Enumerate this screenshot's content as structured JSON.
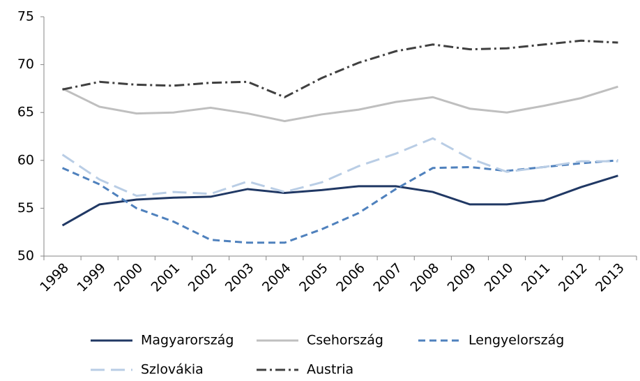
{
  "chart_data": {
    "type": "line",
    "categories": [
      "1998",
      "1999",
      "2000",
      "2001",
      "2002",
      "2003",
      "2004",
      "2005",
      "2006",
      "2007",
      "2008",
      "2009",
      "2010",
      "2011",
      "2012",
      "2013"
    ],
    "series": [
      {
        "name": "Magyarország",
        "color": "#203864",
        "dash": "solid",
        "values": [
          53.2,
          55.4,
          55.9,
          56.1,
          56.2,
          57.0,
          56.6,
          56.9,
          57.3,
          57.3,
          56.7,
          55.4,
          55.4,
          55.8,
          57.2,
          58.4
        ]
      },
      {
        "name": "Csehország",
        "color": "#bfbfbf",
        "dash": "solid",
        "values": [
          67.5,
          65.6,
          64.9,
          65.0,
          65.5,
          64.9,
          64.1,
          64.8,
          65.3,
          66.1,
          66.6,
          65.4,
          65.0,
          65.7,
          66.5,
          67.7
        ]
      },
      {
        "name": "Lengyelország",
        "color": "#4f81bd",
        "dash": "dash",
        "values": [
          59.2,
          57.5,
          55.0,
          53.6,
          51.7,
          51.4,
          51.4,
          52.8,
          54.5,
          57.0,
          59.2,
          59.3,
          58.9,
          59.3,
          59.7,
          60.0
        ]
      },
      {
        "name": "Szlovákia",
        "color": "#b9cde5",
        "dash": "longdash",
        "values": [
          60.6,
          58.0,
          56.3,
          56.7,
          56.5,
          57.8,
          56.7,
          57.7,
          59.4,
          60.7,
          62.3,
          60.2,
          58.8,
          59.3,
          59.9,
          59.9
        ]
      },
      {
        "name": "Austria",
        "color": "#404040",
        "dash": "dashdot",
        "values": [
          67.4,
          68.2,
          67.9,
          67.8,
          68.1,
          68.2,
          66.6,
          68.6,
          70.2,
          71.4,
          72.1,
          71.6,
          71.7,
          72.1,
          72.5,
          72.3
        ]
      }
    ],
    "ylim": [
      50,
      75
    ],
    "yticks": [
      50,
      55,
      60,
      65,
      70,
      75
    ],
    "grid": false,
    "legend": "bottom"
  }
}
